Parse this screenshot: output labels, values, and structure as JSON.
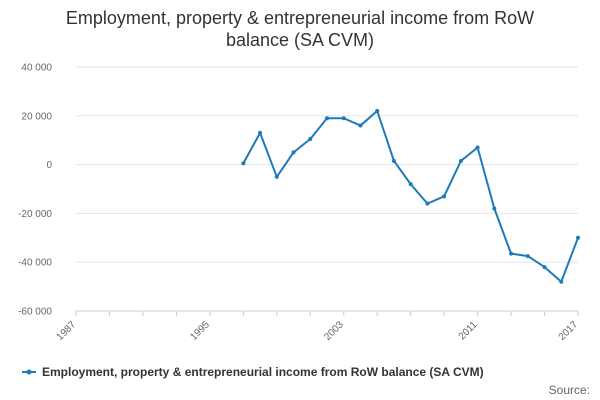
{
  "chart_data": {
    "type": "line",
    "title_lines": [
      "Employment, property & entrepreneurial income from RoW",
      "balance (SA CVM)"
    ],
    "xlabel": "",
    "ylabel": "",
    "x_ticks": [
      "1987",
      "1995",
      "2003",
      "2011",
      "2017"
    ],
    "y_ticks": [
      "40 000",
      "20 000",
      "0",
      "-20 000",
      "-40 000",
      "-60 000"
    ],
    "y_tick_values": [
      40000,
      20000,
      0,
      -20000,
      -40000,
      -60000
    ],
    "xlim": [
      1987,
      2017
    ],
    "ylim": [
      -60000,
      40000
    ],
    "grid": true,
    "legend_position": "bottom",
    "series": [
      {
        "name": "Employment, property & entrepreneurial income from RoW balance (SA CVM)",
        "color": "#1f7ab8",
        "x": [
          1997,
          1998,
          1999,
          2000,
          2001,
          2002,
          2003,
          2004,
          2005,
          2006,
          2007,
          2008,
          2009,
          2010,
          2011,
          2012,
          2013,
          2014,
          2015,
          2016,
          2017
        ],
        "values": [
          500,
          13000,
          -5000,
          5000,
          10500,
          19000,
          19000,
          16000,
          22000,
          1500,
          -8000,
          -16000,
          -13000,
          1500,
          7000,
          -18000,
          -36500,
          -37500,
          -42000,
          -48000,
          -30000
        ]
      }
    ]
  },
  "source_label": "Source:"
}
